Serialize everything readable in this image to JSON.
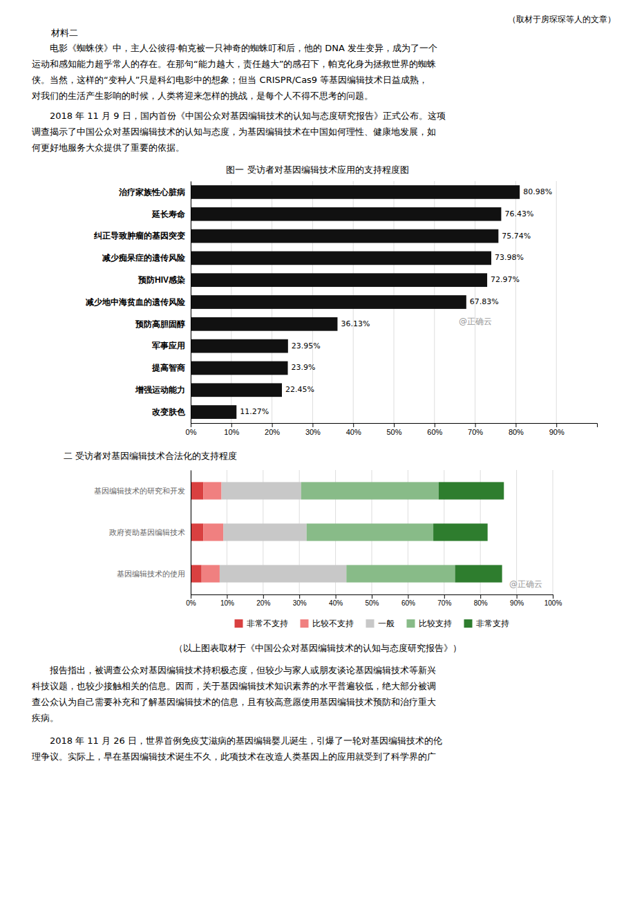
{
  "page": {
    "attribution": "（取材于房琛琛等人的文章）",
    "section_title": "材料二",
    "paragraphs": [
      [
        "电影《蜘蛛侠》中，主人公彼得·帕克被一只神奇的蜘蛛叮和后，他的 DNA 发生变异，成为了一个",
        "运动和感知能力超乎常人的存在。在那句“能力越大，责任越大”的感召下，帕克化身为拯救世界的蜘蛛",
        "侠。当然，这样的“变种人”只是科幻电影中的想象；但当 CRISPR/Cas9 等基因编辑技术日益成熟，",
        "对我们的生活产生影响的时候，人类将迎来怎样的挑战，是每个人不得不思考的问题。"
      ],
      [
        "2018 年 11 月 9 日，国内首份《中国公众对基因编辑技术的认知与态度研究报告》正式公布。这项",
        "调查揭示了中国公众对基因编辑技术的认知与态度，为基因编辑技术在中国如何理性、健康地发展，如",
        "何更好地服务大众提供了重要的依据。"
      ],
      [
        "报告指出，被调查公众对基因编辑技术持积极态度，但较少与家人或朋友谈论基因编辑技术等新兴",
        "科技议题，也较少接触相关的信息。因而，关于基因编辑技术知识素养的水平普遍较低，绝大部分被调",
        "查公众认为自己需要补充和了解基因编辑技术的信息，且有较高意愿使用基因编辑技术预防和治疗重大",
        "疾病。"
      ],
      [
        "2018 年 11 月 26 日，世界首例免疫艾滋病的基因编辑婴儿诞生，引爆了一轮对基因编辑技术的伦",
        "理争议。实际上，早在基因编辑技术诞生不久，此项技术在改造人类基因上的应用就受到了科学界的广"
      ]
    ],
    "citation": "（以上图表取材于《中国公众对基因编辑技术的认知与态度研究报告》）"
  },
  "chart_data": [
    {
      "type": "bar",
      "orientation": "horizontal",
      "title": "图一  受访者对基因编辑技术应用的支持程度图",
      "categories": [
        "治疗家族性心脏病",
        "延长寿命",
        "纠正导致肿瘤的基因突变",
        "减少痴呆症的遗传风险",
        "预防HIV感染",
        "减少地中海贫血的遗传风险",
        "预防高胆固醇",
        "军事应用",
        "提高智商",
        "增强运动能力",
        "改变肤色"
      ],
      "values": [
        80.98,
        76.43,
        75.74,
        73.98,
        72.97,
        67.83,
        36.13,
        23.95,
        23.9,
        22.45,
        11.27
      ],
      "value_labels": [
        "80.98%",
        "76.43%",
        "75.74%",
        "73.98%",
        "72.97%",
        "67.83%",
        "36.13%",
        "23.95%",
        "23.9%",
        "22.45%",
        "11.27%"
      ],
      "data_labels": true,
      "color": "#111111",
      "xlim": [
        0,
        100
      ],
      "xticks": [
        {
          "value": 0,
          "label": "0%"
        },
        {
          "value": 10,
          "label": "10%"
        },
        {
          "value": 20,
          "label": "20%"
        },
        {
          "value": 30,
          "label": "30%"
        },
        {
          "value": 40,
          "label": "40%"
        },
        {
          "value": 50,
          "label": "50%"
        },
        {
          "value": 60,
          "label": "60%"
        },
        {
          "value": 70,
          "label": "70%"
        },
        {
          "value": 80,
          "label": "80%"
        },
        {
          "value": 90,
          "label": "90%"
        }
      ],
      "grid": true,
      "annotations": [
        "@正确云"
      ]
    },
    {
      "type": "bar",
      "orientation": "horizontal",
      "stacked": true,
      "title": "二  受访者对基因编辑技术合法化的支持程度",
      "categories": [
        "基因编辑技术的研究和开发",
        "政府资助基因编辑技术",
        "基因编辑技术的使用"
      ],
      "series": [
        {
          "name": "非常不支持",
          "color": "#d94040",
          "values": [
            3.5,
            3.5,
            3
          ]
        },
        {
          "name": "比较不支持",
          "color": "#f08080",
          "values": [
            5,
            5.5,
            5
          ]
        },
        {
          "name": "一般",
          "color": "#c8c8c8",
          "values": [
            22,
            23,
            35
          ]
        },
        {
          "name": "比较支持",
          "color": "#88bb88",
          "values": [
            38,
            35,
            30
          ]
        },
        {
          "name": "非常支持",
          "color": "#2e7d2e",
          "values": [
            18,
            15,
            13
          ]
        }
      ],
      "xlim": [
        0,
        100
      ],
      "xticks": [
        {
          "value": 0,
          "label": "0%"
        },
        {
          "value": 10,
          "label": "10%"
        },
        {
          "value": 20,
          "label": "20%"
        },
        {
          "value": 30,
          "label": "30%"
        },
        {
          "value": 40,
          "label": "40%"
        },
        {
          "value": 50,
          "label": "50%"
        },
        {
          "value": 60,
          "label": "60%"
        },
        {
          "value": 70,
          "label": "70%"
        },
        {
          "value": 80,
          "label": "80%"
        },
        {
          "value": 90,
          "label": "90%"
        },
        {
          "value": 100,
          "label": "100%"
        }
      ],
      "grid": true,
      "legend": "bottom",
      "annotations": [
        "@正确云"
      ]
    }
  ]
}
